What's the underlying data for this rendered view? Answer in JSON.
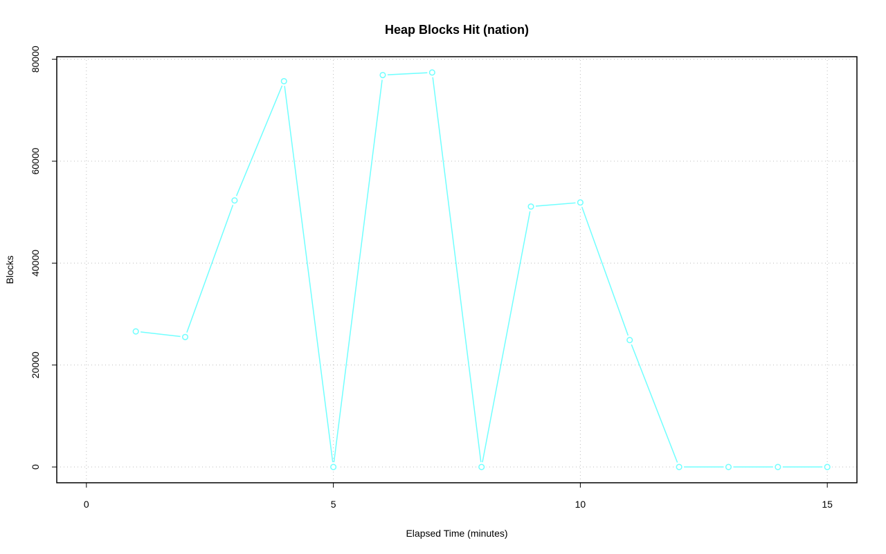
{
  "chart_data": {
    "type": "line",
    "title": "Heap Blocks Hit (nation)",
    "x_label": "Elapsed Time (minutes)",
    "y_label": "Blocks",
    "x": [
      1,
      2,
      3,
      4,
      5,
      6,
      7,
      8,
      9,
      10,
      11,
      12,
      13,
      14,
      15
    ],
    "values": [
      26600,
      25500,
      52300,
      75700,
      0,
      76900,
      77400,
      0,
      51100,
      51900,
      24900,
      0,
      0,
      0,
      0
    ],
    "color": "#70ffff",
    "xlim": [
      -0.6,
      15.6
    ],
    "ylim": [
      -3100,
      80500
    ],
    "xticks": [
      0,
      5,
      10,
      15
    ],
    "yticks": [
      0,
      20000,
      40000,
      60000,
      80000
    ],
    "grid": true
  }
}
